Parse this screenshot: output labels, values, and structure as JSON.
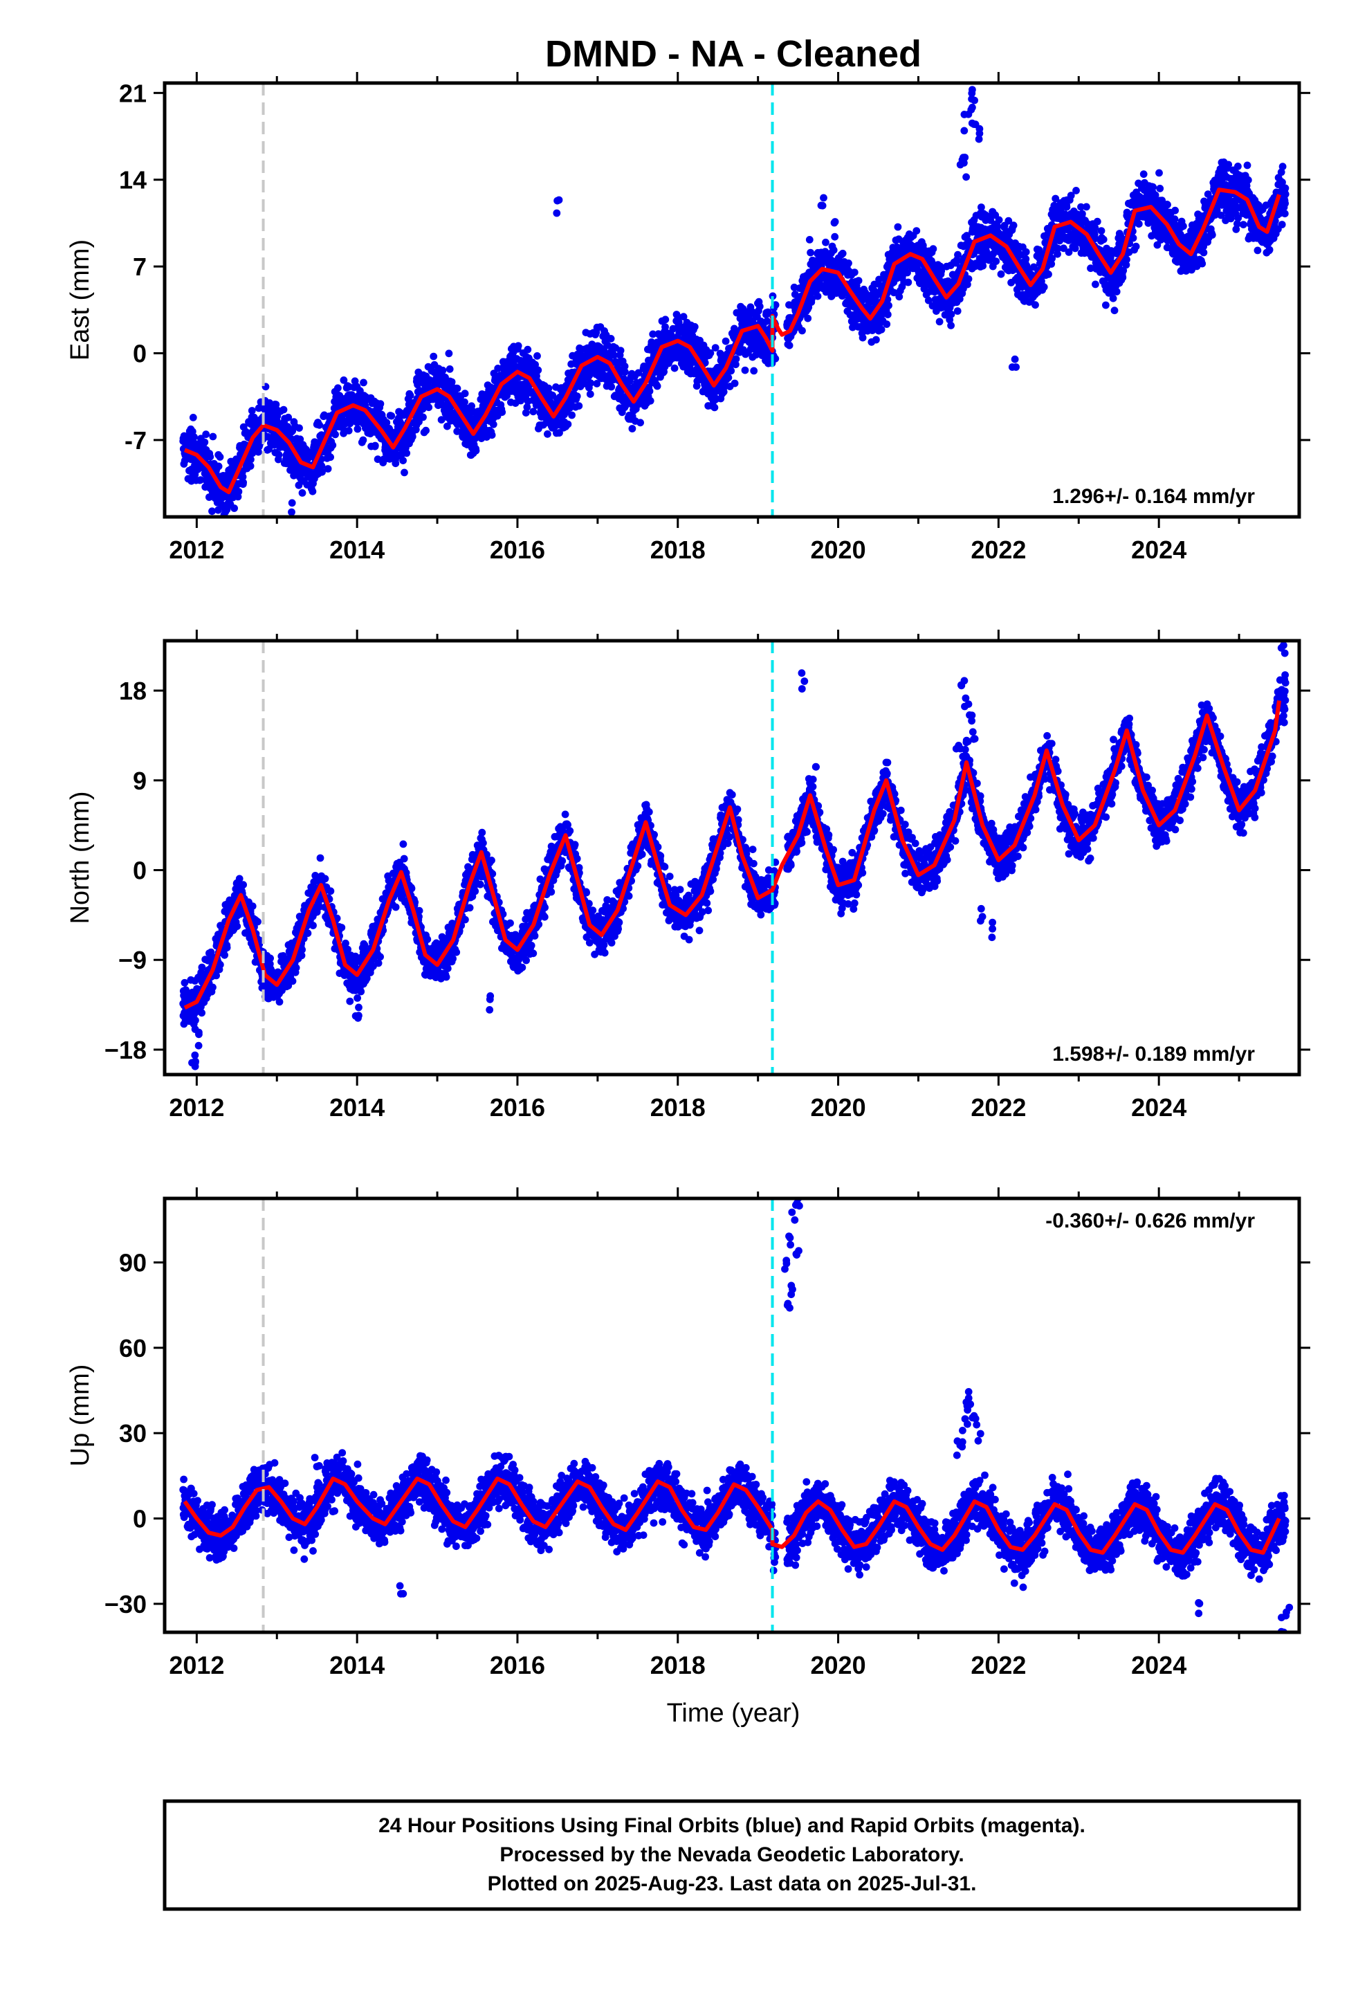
{
  "title": "DMND  - NA - Cleaned",
  "caption": {
    "line1": "24 Hour Positions Using Final Orbits (blue) and Rapid Orbits (magenta).",
    "line2": "Processed by the Nevada Geodetic Laboratory.",
    "line3": "Plotted on 2025-Aug-23. Last data on 2025-Jul-31."
  },
  "colors": {
    "final_orbits": "#0000ee",
    "model": "#ff0000",
    "equipment_change_line": "#c8c8c8",
    "antenna_change_line": "#00e5ee"
  },
  "chart_data": [
    {
      "type": "scatter",
      "name": "east",
      "xlabel": "",
      "ylabel": "East (mm)",
      "xlim": [
        2011.6,
        2025.75
      ],
      "ylim": [
        -13.2,
        21.8
      ],
      "xticks": [
        2012,
        2014,
        2016,
        2018,
        2020,
        2022,
        2024
      ],
      "yticks": [
        -7,
        0,
        7,
        14,
        21
      ],
      "ytick_labels": [
        "-7",
        "0",
        "7",
        "14",
        "21"
      ],
      "rate_text": "1.296+/- 0.164 mm/yr",
      "rate_position": "bottom-right",
      "gray_line_x": 2012.83,
      "cyan_line_x": 2019.18,
      "model": {
        "x": [
          2011.85,
          2012.0,
          2012.15,
          2012.3,
          2012.4,
          2012.55,
          2012.7,
          2012.83,
          2013.0,
          2013.15,
          2013.3,
          2013.45,
          2013.6,
          2013.75,
          2013.95,
          2014.1,
          2014.3,
          2014.45,
          2014.6,
          2014.8,
          2015.0,
          2015.15,
          2015.3,
          2015.45,
          2015.6,
          2015.8,
          2016.0,
          2016.15,
          2016.3,
          2016.45,
          2016.6,
          2016.8,
          2017.0,
          2017.15,
          2017.3,
          2017.45,
          2017.6,
          2017.8,
          2018.0,
          2018.15,
          2018.3,
          2018.45,
          2018.6,
          2018.8,
          2019.0,
          2019.1,
          2019.18,
          2019.18,
          2019.25,
          2019.3,
          2019.4,
          2019.5,
          2019.65,
          2019.8,
          2020.0,
          2020.15,
          2020.3,
          2020.4,
          2020.55,
          2020.7,
          2020.9,
          2021.05,
          2021.2,
          2021.35,
          2021.5,
          2021.7,
          2021.9,
          2022.1,
          2022.25,
          2022.4,
          2022.55,
          2022.7,
          2022.9,
          2023.1,
          2023.25,
          2023.4,
          2023.55,
          2023.7,
          2023.9,
          2024.1,
          2024.25,
          2024.4,
          2024.55,
          2024.75,
          2024.95,
          2025.1,
          2025.25,
          2025.35,
          2025.5
        ],
        "y": [
          -7.8,
          -8.2,
          -9.2,
          -10.8,
          -11.2,
          -9.0,
          -6.8,
          -5.8,
          -6.2,
          -7.2,
          -8.8,
          -9.2,
          -7.0,
          -4.8,
          -4.2,
          -4.6,
          -6.2,
          -7.6,
          -6.0,
          -3.5,
          -2.9,
          -3.5,
          -5.0,
          -6.5,
          -5.0,
          -2.5,
          -1.5,
          -2.0,
          -3.6,
          -5.1,
          -3.6,
          -1.0,
          -0.3,
          -0.8,
          -2.5,
          -3.9,
          -2.4,
          0.5,
          1.0,
          0.5,
          -1.0,
          -2.6,
          -1.2,
          1.8,
          2.2,
          1.2,
          0.2,
          3.0,
          2.0,
          1.5,
          1.8,
          3.2,
          5.8,
          6.8,
          6.5,
          5.0,
          3.6,
          2.8,
          4.2,
          7.2,
          8.0,
          7.6,
          6.0,
          4.5,
          5.6,
          9.0,
          9.5,
          8.6,
          7.0,
          5.5,
          6.8,
          10.2,
          10.6,
          9.6,
          8.0,
          6.5,
          8.0,
          11.5,
          11.8,
          10.4,
          8.8,
          8.0,
          10.0,
          13.2,
          13.0,
          12.4,
          10.2,
          9.8,
          12.8
        ]
      },
      "outliers": [
        [
          2021.55,
          16.0
        ],
        [
          2021.6,
          18.5
        ],
        [
          2021.65,
          20.5
        ],
        [
          2021.7,
          19.0
        ],
        [
          2021.75,
          17.5
        ],
        [
          2021.58,
          15.0
        ],
        [
          2021.68,
          21.0
        ],
        [
          2022.2,
          -0.5
        ],
        [
          2019.8,
          12.0
        ],
        [
          2019.95,
          10.0
        ],
        [
          2013.2,
          -12.8
        ],
        [
          2016.5,
          11.5
        ]
      ]
    },
    {
      "type": "scatter",
      "name": "north",
      "xlabel": "",
      "ylabel": "North (mm)",
      "xlim": [
        2011.6,
        2025.75
      ],
      "ylim": [
        -20.5,
        23.0
      ],
      "xticks": [
        2012,
        2014,
        2016,
        2018,
        2020,
        2022,
        2024
      ],
      "yticks": [
        -18,
        -9,
        0,
        9,
        18
      ],
      "ytick_labels": [
        "−18",
        "−9",
        "0",
        "9",
        "18"
      ],
      "rate_text": "1.598+/- 0.189 mm/yr",
      "rate_position": "bottom-right",
      "gray_line_x": 2012.83,
      "cyan_line_x": 2019.18,
      "model": {
        "x": [
          2011.85,
          2012.0,
          2012.2,
          2012.4,
          2012.55,
          2012.7,
          2012.85,
          2013.0,
          2013.2,
          2013.4,
          2013.55,
          2013.7,
          2013.85,
          2014.0,
          2014.2,
          2014.4,
          2014.55,
          2014.7,
          2014.85,
          2015.0,
          2015.2,
          2015.4,
          2015.55,
          2015.7,
          2015.85,
          2016.0,
          2016.2,
          2016.4,
          2016.6,
          2016.75,
          2016.9,
          2017.05,
          2017.25,
          2017.45,
          2017.6,
          2017.75,
          2017.9,
          2018.1,
          2018.3,
          2018.5,
          2018.65,
          2018.8,
          2019.0,
          2019.18,
          2019.3,
          2019.5,
          2019.65,
          2019.85,
          2020.0,
          2020.2,
          2020.45,
          2020.6,
          2020.8,
          2021.0,
          2021.2,
          2021.45,
          2021.6,
          2021.8,
          2022.0,
          2022.2,
          2022.45,
          2022.6,
          2022.8,
          2023.0,
          2023.2,
          2023.45,
          2023.6,
          2023.8,
          2024.0,
          2024.2,
          2024.45,
          2024.6,
          2024.8,
          2025.0,
          2025.2,
          2025.45,
          2025.5
        ],
        "y": [
          -13.8,
          -13.2,
          -10.0,
          -5.0,
          -2.5,
          -6.0,
          -10.5,
          -11.5,
          -9.0,
          -4.0,
          -1.5,
          -5.0,
          -9.5,
          -10.5,
          -8.0,
          -3.0,
          -0.2,
          -4.0,
          -8.5,
          -9.5,
          -7.0,
          -1.5,
          1.8,
          -2.5,
          -7.0,
          -8.0,
          -5.5,
          -0.5,
          3.5,
          -1.0,
          -5.5,
          -6.5,
          -4.0,
          1.0,
          4.8,
          0.5,
          -3.5,
          -4.5,
          -2.5,
          2.5,
          6.3,
          1.5,
          -2.8,
          -2.0,
          0.5,
          3.5,
          7.5,
          2.0,
          -1.5,
          -1.0,
          6.0,
          9.0,
          3.0,
          -0.5,
          0.5,
          5.0,
          10.8,
          4.5,
          1.0,
          2.5,
          7.5,
          12.0,
          6.5,
          3.0,
          4.5,
          10.0,
          14.0,
          8.0,
          4.5,
          6.0,
          11.5,
          15.5,
          10.5,
          6.0,
          8.0,
          14.0,
          17.0
        ]
      },
      "outliers": [
        [
          2019.55,
          19.0
        ],
        [
          2021.55,
          19.0
        ],
        [
          2021.6,
          17.0
        ],
        [
          2021.65,
          15.5
        ],
        [
          2021.7,
          14.0
        ],
        [
          2021.5,
          13.0
        ],
        [
          2021.9,
          -6.0
        ],
        [
          2021.8,
          -4.5
        ],
        [
          2014.0,
          -15.0
        ],
        [
          2015.65,
          -13.5
        ],
        [
          2012.0,
          -20.0
        ],
        [
          2011.95,
          -18.5
        ],
        [
          2012.05,
          -17.0
        ],
        [
          2025.55,
          22.0
        ],
        [
          2019.7,
          9.5
        ]
      ]
    },
    {
      "type": "scatter",
      "name": "up",
      "xlabel": "Time (year)",
      "ylabel": "Up (mm)",
      "xlim": [
        2011.6,
        2025.75
      ],
      "ylim": [
        -40.0,
        112.5
      ],
      "xticks": [
        2012,
        2014,
        2016,
        2018,
        2020,
        2022,
        2024
      ],
      "yticks": [
        -30,
        0,
        30,
        60,
        90
      ],
      "ytick_labels": [
        "−30",
        "0",
        "30",
        "60",
        "90"
      ],
      "rate_text": "-0.360+/- 0.626 mm/yr",
      "rate_position": "top-right",
      "gray_line_x": 2012.83,
      "cyan_line_x": 2019.18,
      "model": {
        "x": [
          2011.85,
          2012.0,
          2012.15,
          2012.3,
          2012.45,
          2012.6,
          2012.75,
          2012.9,
          2013.05,
          2013.2,
          2013.35,
          2013.5,
          2013.7,
          2013.85,
          2014.0,
          2014.2,
          2014.35,
          2014.5,
          2014.75,
          2014.9,
          2015.05,
          2015.2,
          2015.35,
          2015.5,
          2015.75,
          2015.9,
          2016.05,
          2016.2,
          2016.35,
          2016.5,
          2016.75,
          2016.9,
          2017.05,
          2017.2,
          2017.35,
          2017.5,
          2017.75,
          2017.9,
          2018.05,
          2018.2,
          2018.35,
          2018.5,
          2018.7,
          2018.85,
          2019.0,
          2019.18,
          2019.18,
          2019.3,
          2019.45,
          2019.6,
          2019.75,
          2019.9,
          2020.05,
          2020.2,
          2020.35,
          2020.5,
          2020.7,
          2020.85,
          2021.0,
          2021.15,
          2021.3,
          2021.45,
          2021.7,
          2021.85,
          2022.0,
          2022.15,
          2022.3,
          2022.45,
          2022.7,
          2022.85,
          2023.0,
          2023.15,
          2023.3,
          2023.45,
          2023.7,
          2023.85,
          2024.0,
          2024.15,
          2024.3,
          2024.45,
          2024.7,
          2024.85,
          2025.0,
          2025.15,
          2025.3,
          2025.5
        ],
        "y": [
          6,
          0,
          -5,
          -6,
          -3,
          4,
          10,
          11,
          6,
          0,
          -2,
          4,
          14,
          12,
          6,
          0,
          -2,
          4,
          14,
          12,
          5,
          -1,
          -3,
          3,
          14,
          12,
          5,
          -1,
          -3,
          3,
          13,
          11,
          4,
          -2,
          -4,
          2,
          13,
          11,
          3,
          -3,
          -4,
          2,
          12,
          10,
          4,
          -4,
          -9,
          -10,
          -6,
          2,
          6,
          3,
          -4,
          -10,
          -9,
          -3,
          6,
          4,
          -3,
          -9,
          -11,
          -6,
          6,
          4,
          -4,
          -10,
          -11,
          -6,
          5,
          3,
          -5,
          -11,
          -12,
          -6,
          5,
          3,
          -5,
          -11,
          -12,
          -6,
          5,
          3,
          -5,
          -11,
          -12,
          0
        ]
      },
      "outliers": [
        [
          2019.45,
          108
        ],
        [
          2019.5,
          110
        ],
        [
          2019.4,
          98
        ],
        [
          2019.35,
          88
        ],
        [
          2019.42,
          82
        ],
        [
          2019.38,
          76
        ],
        [
          2019.48,
          92
        ],
        [
          2021.55,
          28
        ],
        [
          2021.6,
          35
        ],
        [
          2021.65,
          40
        ],
        [
          2021.7,
          33
        ],
        [
          2021.75,
          30
        ],
        [
          2021.5,
          25
        ],
        [
          2021.62,
          42
        ],
        [
          2021.9,
          10
        ],
        [
          2014.55,
          -26
        ],
        [
          2024.5,
          -31
        ],
        [
          2025.55,
          -37
        ],
        [
          2025.6,
          -32
        ],
        [
          2013.5,
          20
        ]
      ]
    }
  ]
}
